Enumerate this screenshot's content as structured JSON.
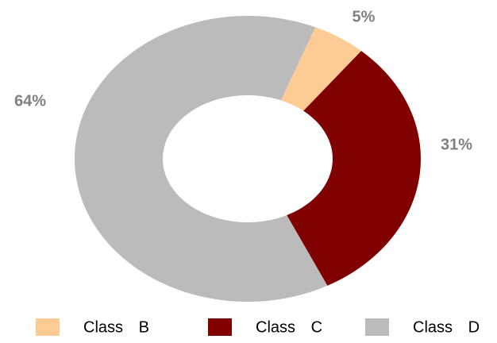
{
  "chart_data": {
    "type": "donut",
    "categories": [
      "Class B",
      "Class C",
      "Class D"
    ],
    "values": [
      5,
      31,
      64
    ],
    "value_labels": [
      "5%",
      "31%",
      "64%"
    ],
    "colors": [
      "#fdcb94",
      "#800000",
      "#bbbbbb"
    ]
  }
}
